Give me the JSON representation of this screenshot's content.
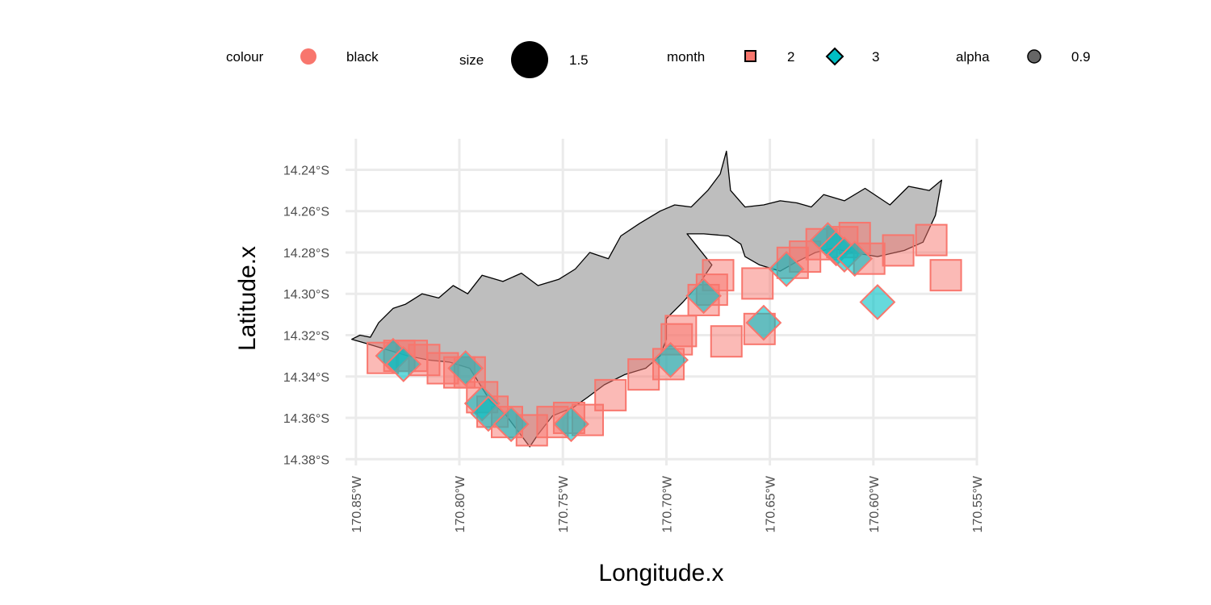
{
  "legend": {
    "colour": {
      "title": "colour",
      "label": "black",
      "swatch_color": "#F8766D"
    },
    "size": {
      "title": "size",
      "label": "1.5",
      "swatch_color": "#000000"
    },
    "month": {
      "title": "month",
      "items": [
        {
          "label": "2",
          "shape": "square",
          "fill": "#F8766D"
        },
        {
          "label": "3",
          "shape": "diamond",
          "fill": "#00BFC4"
        }
      ]
    },
    "alpha": {
      "title": "alpha",
      "label": "0.9",
      "swatch_color": "#666666"
    }
  },
  "chart_data": {
    "type": "scatter",
    "xlabel": "Longitude.x",
    "ylabel": "Latitude.x",
    "xlim": [
      -170.855,
      -170.55
    ],
    "ylim": [
      -14.383,
      -14.225
    ],
    "x_ticks": [
      -170.85,
      -170.8,
      -170.75,
      -170.7,
      -170.65,
      -170.6,
      -170.55
    ],
    "x_tick_labels": [
      "170.85°W",
      "170.80°W",
      "170.75°W",
      "170.70°W",
      "170.65°W",
      "170.60°W",
      "170.55°W"
    ],
    "y_ticks": [
      -14.24,
      -14.26,
      -14.28,
      -14.3,
      -14.32,
      -14.34,
      -14.36,
      -14.38
    ],
    "y_tick_labels": [
      "14.24°S",
      "14.26°S",
      "14.28°S",
      "14.30°S",
      "14.32°S",
      "14.34°S",
      "14.36°S",
      "14.38°S"
    ],
    "grid": true,
    "legend_position": "top",
    "island_fill": "#bebebe",
    "island_outline": [
      [
        -170.852,
        -14.322
      ],
      [
        -170.848,
        -14.32
      ],
      [
        -170.843,
        -14.321
      ],
      [
        -170.839,
        -14.314
      ],
      [
        -170.832,
        -14.307
      ],
      [
        -170.826,
        -14.305
      ],
      [
        -170.818,
        -14.3
      ],
      [
        -170.81,
        -14.302
      ],
      [
        -170.803,
        -14.296
      ],
      [
        -170.796,
        -14.3
      ],
      [
        -170.789,
        -14.291
      ],
      [
        -170.779,
        -14.294
      ],
      [
        -170.77,
        -14.29
      ],
      [
        -170.762,
        -14.296
      ],
      [
        -170.752,
        -14.293
      ],
      [
        -170.744,
        -14.288
      ],
      [
        -170.737,
        -14.28
      ],
      [
        -170.728,
        -14.283
      ],
      [
        -170.722,
        -14.272
      ],
      [
        -170.713,
        -14.266
      ],
      [
        -170.703,
        -14.26
      ],
      [
        -170.696,
        -14.257
      ],
      [
        -170.688,
        -14.258
      ],
      [
        -170.68,
        -14.25
      ],
      [
        -170.674,
        -14.242
      ],
      [
        -170.671,
        -14.231
      ],
      [
        -170.669,
        -14.25
      ],
      [
        -170.662,
        -14.258
      ],
      [
        -170.653,
        -14.257
      ],
      [
        -170.645,
        -14.255
      ],
      [
        -170.637,
        -14.256
      ],
      [
        -170.63,
        -14.258
      ],
      [
        -170.624,
        -14.252
      ],
      [
        -170.614,
        -14.255
      ],
      [
        -170.604,
        -14.249
      ],
      [
        -170.592,
        -14.257
      ],
      [
        -170.583,
        -14.248
      ],
      [
        -170.573,
        -14.25
      ],
      [
        -170.567,
        -14.245
      ],
      [
        -170.57,
        -14.262
      ],
      [
        -170.576,
        -14.275
      ],
      [
        -170.585,
        -14.279
      ],
      [
        -170.598,
        -14.282
      ],
      [
        -170.61,
        -14.28
      ],
      [
        -170.62,
        -14.278
      ],
      [
        -170.628,
        -14.28
      ],
      [
        -170.638,
        -14.285
      ],
      [
        -170.645,
        -14.289
      ],
      [
        -170.655,
        -14.286
      ],
      [
        -170.662,
        -14.282
      ],
      [
        -170.664,
        -14.276
      ],
      [
        -170.67,
        -14.272
      ],
      [
        -170.682,
        -14.271
      ],
      [
        -170.69,
        -14.271
      ],
      [
        -170.686,
        -14.276
      ],
      [
        -170.678,
        -14.286
      ],
      [
        -170.684,
        -14.295
      ],
      [
        -170.692,
        -14.304
      ],
      [
        -170.7,
        -14.312
      ],
      [
        -170.7,
        -14.322
      ],
      [
        -170.703,
        -14.33
      ],
      [
        -170.71,
        -14.336
      ],
      [
        -170.72,
        -14.339
      ],
      [
        -170.73,
        -14.344
      ],
      [
        -170.738,
        -14.35
      ],
      [
        -170.745,
        -14.355
      ],
      [
        -170.755,
        -14.359
      ],
      [
        -170.762,
        -14.368
      ],
      [
        -170.766,
        -14.374
      ],
      [
        -170.772,
        -14.366
      ],
      [
        -170.778,
        -14.358
      ],
      [
        -170.785,
        -14.352
      ],
      [
        -170.79,
        -14.344
      ],
      [
        -170.795,
        -14.336
      ],
      [
        -170.805,
        -14.333
      ],
      [
        -170.815,
        -14.332
      ],
      [
        -170.825,
        -14.33
      ],
      [
        -170.835,
        -14.327
      ],
      [
        -170.845,
        -14.324
      ],
      [
        -170.852,
        -14.322
      ]
    ],
    "series": [
      {
        "name": "2",
        "shape": "square",
        "fill": "#F8766D",
        "points": [
          [
            -170.837,
            -14.331
          ],
          [
            -170.829,
            -14.33
          ],
          [
            -170.823,
            -14.33
          ],
          [
            -170.817,
            -14.332
          ],
          [
            -170.808,
            -14.336
          ],
          [
            -170.8,
            -14.338
          ],
          [
            -170.795,
            -14.338
          ],
          [
            -170.789,
            -14.35
          ],
          [
            -170.784,
            -14.357
          ],
          [
            -170.777,
            -14.362
          ],
          [
            -170.765,
            -14.366
          ],
          [
            -170.755,
            -14.362
          ],
          [
            -170.747,
            -14.36
          ],
          [
            -170.738,
            -14.361
          ],
          [
            -170.727,
            -14.349
          ],
          [
            -170.711,
            -14.339
          ],
          [
            -170.699,
            -14.334
          ],
          [
            -170.695,
            -14.322
          ],
          [
            -170.693,
            -14.318
          ],
          [
            -170.682,
            -14.303
          ],
          [
            -170.678,
            -14.298
          ],
          [
            -170.675,
            -14.291
          ],
          [
            -170.671,
            -14.323
          ],
          [
            -170.656,
            -14.295
          ],
          [
            -170.655,
            -14.317
          ],
          [
            -170.639,
            -14.285
          ],
          [
            -170.633,
            -14.282
          ],
          [
            -170.625,
            -14.276
          ],
          [
            -170.615,
            -14.275
          ],
          [
            -170.609,
            -14.273
          ],
          [
            -170.602,
            -14.283
          ],
          [
            -170.588,
            -14.279
          ],
          [
            -170.572,
            -14.274
          ],
          [
            -170.565,
            -14.291
          ]
        ]
      },
      {
        "name": "3",
        "shape": "diamond",
        "fill": "#00BFC4",
        "points": [
          [
            -170.832,
            -14.33
          ],
          [
            -170.827,
            -14.334
          ],
          [
            -170.797,
            -14.336
          ],
          [
            -170.789,
            -14.353
          ],
          [
            -170.786,
            -14.358
          ],
          [
            -170.775,
            -14.363
          ],
          [
            -170.746,
            -14.363
          ],
          [
            -170.698,
            -14.332
          ],
          [
            -170.682,
            -14.301
          ],
          [
            -170.653,
            -14.314
          ],
          [
            -170.642,
            -14.288
          ],
          [
            -170.622,
            -14.274
          ],
          [
            -170.618,
            -14.278
          ],
          [
            -170.614,
            -14.281
          ],
          [
            -170.609,
            -14.283
          ],
          [
            -170.598,
            -14.304
          ]
        ]
      }
    ]
  }
}
